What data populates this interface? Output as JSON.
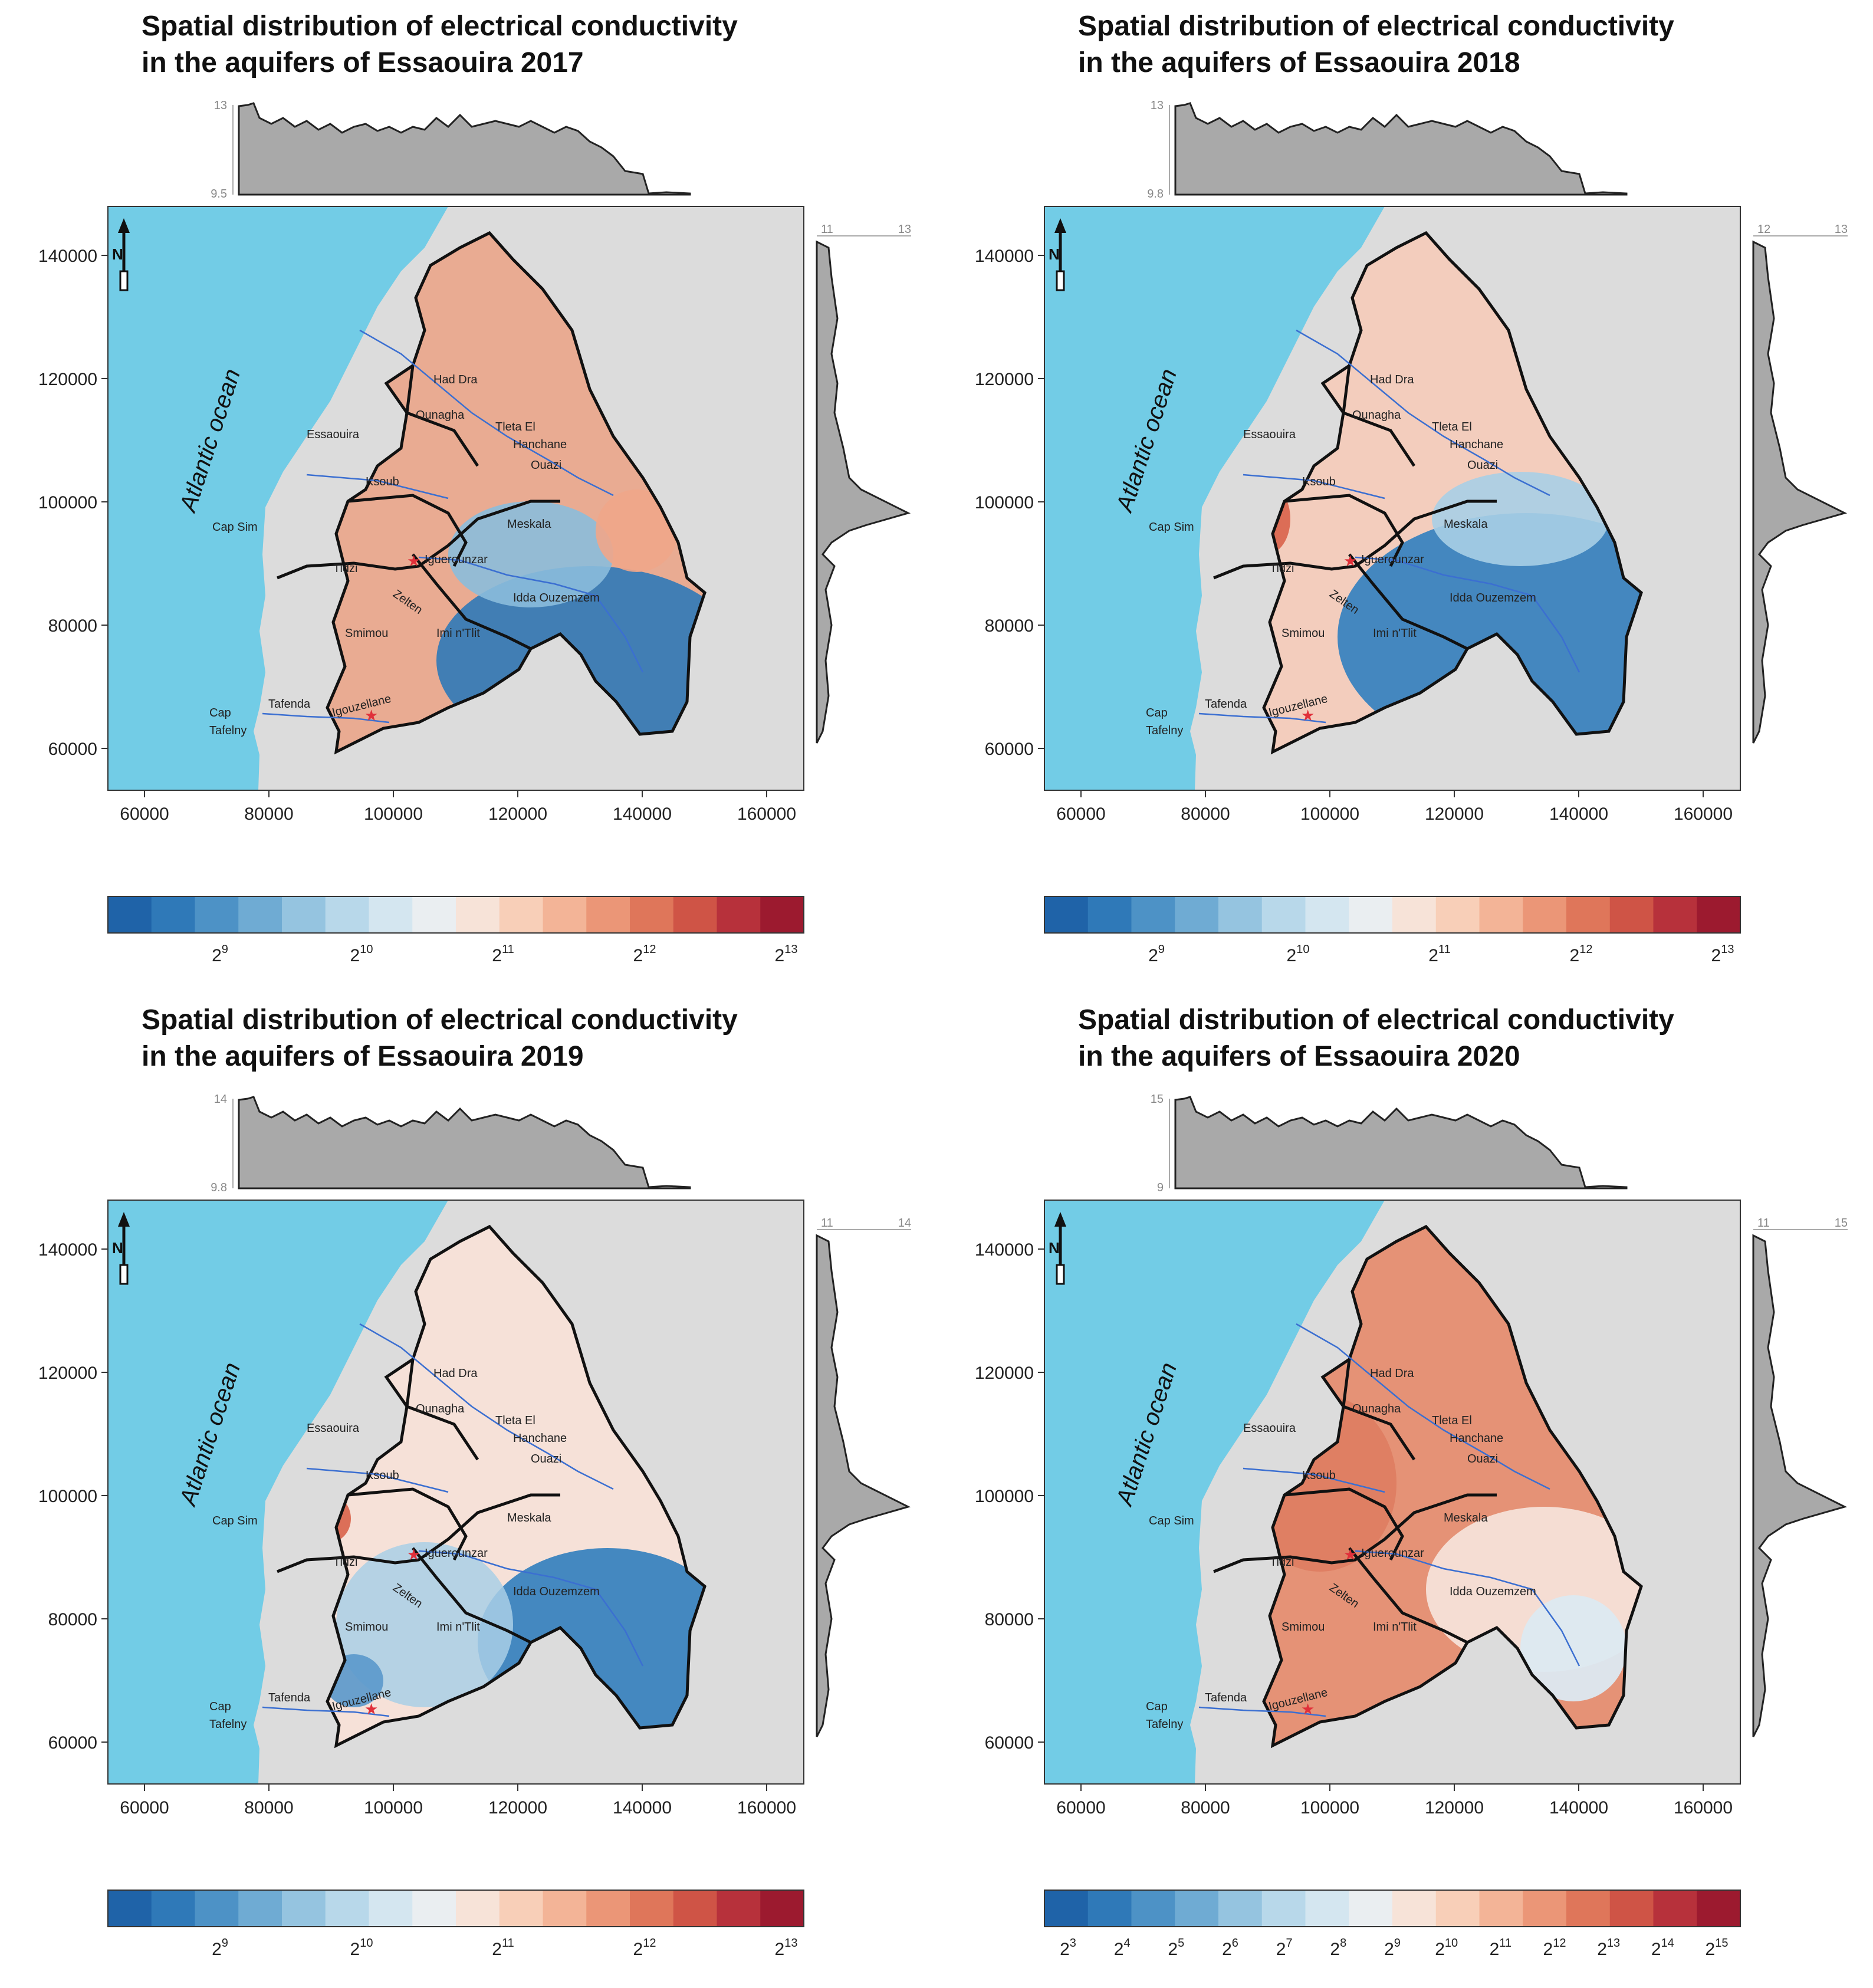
{
  "panels": [
    {
      "title_line1": "Spatial distribution of electrical conductivity",
      "title_line2": "in the aquifers of Essaouira 2017",
      "top_hist": {
        "max": "13",
        "min": "9.5"
      },
      "right_hist": {
        "min": "11",
        "max": "13"
      },
      "colorbar_ticks": [
        {
          "base": "2",
          "exp": "9"
        },
        {
          "base": "2",
          "exp": "10"
        },
        {
          "base": "2",
          "exp": "11"
        },
        {
          "base": "2",
          "exp": "12"
        },
        {
          "base": "2",
          "exp": "13"
        }
      ],
      "tint": "#e9ab92"
    },
    {
      "title_line1": "Spatial distribution of electrical conductivity",
      "title_line2": "in the aquifers of Essaouira 2018",
      "top_hist": {
        "max": "13",
        "min": "9.8"
      },
      "right_hist": {
        "min": "12",
        "max": "13"
      },
      "colorbar_ticks": [
        {
          "base": "2",
          "exp": "9"
        },
        {
          "base": "2",
          "exp": "10"
        },
        {
          "base": "2",
          "exp": "11"
        },
        {
          "base": "2",
          "exp": "12"
        },
        {
          "base": "2",
          "exp": "13"
        }
      ],
      "tint": "#f3cdbd"
    },
    {
      "title_line1": "Spatial distribution of electrical conductivity",
      "title_line2": "in the aquifers of Essaouira 2019",
      "top_hist": {
        "max": "14",
        "min": "9.8"
      },
      "right_hist": {
        "min": "11",
        "max": "14"
      },
      "colorbar_ticks": [
        {
          "base": "2",
          "exp": "9"
        },
        {
          "base": "2",
          "exp": "10"
        },
        {
          "base": "2",
          "exp": "11"
        },
        {
          "base": "2",
          "exp": "12"
        },
        {
          "base": "2",
          "exp": "13"
        }
      ],
      "tint": "#f6e1d8"
    },
    {
      "title_line1": "Spatial distribution of electrical conductivity",
      "title_line2": "in the aquifers of Essaouira 2020",
      "top_hist": {
        "max": "15",
        "min": "9"
      },
      "right_hist": {
        "min": "11",
        "max": "15"
      },
      "colorbar_ticks": [
        {
          "base": "2",
          "exp": "3"
        },
        {
          "base": "2",
          "exp": "4"
        },
        {
          "base": "2",
          "exp": "5"
        },
        {
          "base": "2",
          "exp": "6"
        },
        {
          "base": "2",
          "exp": "7"
        },
        {
          "base": "2",
          "exp": "8"
        },
        {
          "base": "2",
          "exp": "9"
        },
        {
          "base": "2",
          "exp": "10"
        },
        {
          "base": "2",
          "exp": "11"
        },
        {
          "base": "2",
          "exp": "12"
        },
        {
          "base": "2",
          "exp": "13"
        },
        {
          "base": "2",
          "exp": "14"
        },
        {
          "base": "2",
          "exp": "15"
        }
      ],
      "tint": "#e59276"
    }
  ],
  "y_ticks": [
    "140000",
    "120000",
    "100000",
    "80000",
    "60000"
  ],
  "x_ticks": [
    "60000",
    "80000",
    "100000",
    "120000",
    "140000",
    "160000"
  ],
  "ocean_label": "Atlantic ocean",
  "places": {
    "had_dra": "Had Dra",
    "ounagha": "Ounagha",
    "tleta1": "Tleta El",
    "tleta2": "Hanchane",
    "ouazi": "Ouazi",
    "essaouira": "Essaouira",
    "ksoub": "Ksoub",
    "cap_sim": "Cap Sim",
    "meskala": "Meskala",
    "tidzi": "Tidzi",
    "iguerounzar": "Iguerounzar",
    "zelten": "Zelten",
    "idda": "Idda Ouzemzem",
    "smimou": "Smimou",
    "imi": "Imi n'Tlit",
    "tafenda": "Tafenda",
    "igouzellane": "Igouzellane",
    "cap1": "Cap",
    "cap2": "Tafelny"
  },
  "colors": {
    "ocean": "#72cce6",
    "land": "#dcdcdc",
    "hist": "#a9a9a9",
    "blue": "#2f79b8",
    "red": "#d9634a"
  },
  "colorbar_colors": [
    "#1f63a8",
    "#2f79b8",
    "#4d92c6",
    "#6fabd3",
    "#95c4e0",
    "#b8d8ea",
    "#d4e6f0",
    "#eaeef1",
    "#f7e3d8",
    "#f8cfb8",
    "#f3b497",
    "#eb9677",
    "#df765a",
    "#cf5446",
    "#b7313b",
    "#9c1a2f"
  ]
}
